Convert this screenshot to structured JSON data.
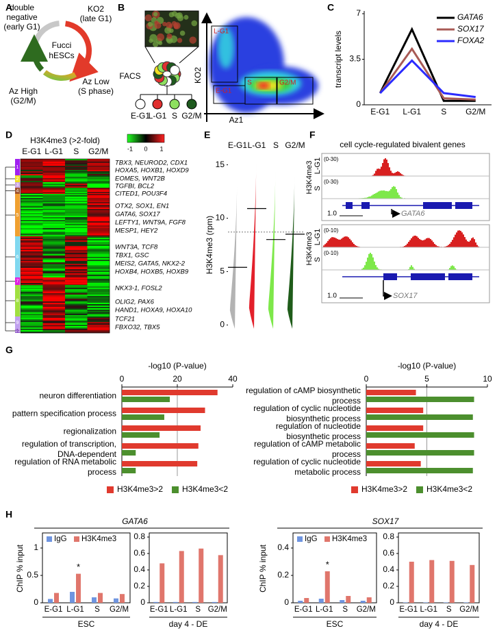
{
  "panel_labels": [
    "A",
    "B",
    "C",
    "D",
    "E",
    "F",
    "G",
    "H"
  ],
  "panel_a": {
    "center": [
      "Fucci",
      "hESCs"
    ],
    "phases": [
      [
        "double",
        "negative",
        "(early G1)"
      ],
      [
        "KO2",
        "(late G1)"
      ],
      [
        "Az Low",
        "(S phase)"
      ],
      [
        "Az High",
        "(G2/M)"
      ]
    ]
  },
  "panel_b": {
    "sort_label": "FACS",
    "populations": [
      "E-G1",
      "L-G1",
      "S",
      "G2/M"
    ],
    "gates": [
      "L-G1",
      "E-G1",
      "S",
      "G2/M"
    ],
    "y_label": "KO2",
    "x_label": "Az1"
  },
  "panel_d": {
    "title": "H3K4me3 (>2-fold)",
    "columns": [
      "E-G1",
      "L-G1",
      "S",
      "G2/M"
    ],
    "colorbar_ticks": [
      -1,
      0,
      1
    ],
    "clusters": [
      "1",
      "2",
      "3",
      "4",
      "5",
      "6",
      "7",
      "8",
      "9",
      "10"
    ],
    "genes": [
      "TBX3, NEUROD2, CDX1",
      "HOXA5, HOXB1, HOXD9",
      "EOMES, WNT2B",
      "TGFBI, BCL2",
      "CITED1, POU3F4",
      "OTX2, SOX1, EN1",
      "GATA6, SOX17",
      "LEFTY1, WNT9A, FGF8",
      "MESP1, HEY2",
      "WNT3A, TCF8",
      "TBX1, GSC",
      "MEIS2, GATA5, NKX2-2",
      "HOXB4, HOXB5, HOXB9",
      "NKX3-1, FOSL2",
      "OLIG2, PAX6",
      "HAND1, HOXA9, HOXA10",
      "TCF21",
      "FBXO32, TBX5"
    ]
  },
  "panel_f": {
    "title": "cell cycle-regulated bivalent genes",
    "loci": [
      {
        "mark": "H3K4me3",
        "tracks": [
          {
            "label": "L-G1",
            "range": "(0-30)"
          },
          {
            "label": "S",
            "range": "(0-30)"
          }
        ],
        "scale": "1.0",
        "gene": "GATA6"
      },
      {
        "mark": "H3K4me3",
        "tracks": [
          {
            "label": "L-G1",
            "range": "(0-10)"
          },
          {
            "label": "S",
            "range": "(0-10)"
          }
        ],
        "scale": "1.0",
        "gene": "SOX17"
      }
    ]
  },
  "panel_h": {
    "genes": [
      "GATA6",
      "SOX17"
    ],
    "y_label": "ChIP % input"
  },
  "chart_data": [
    {
      "type": "line",
      "categories": [
        "E-G1",
        "L-G1",
        "S",
        "G2/M"
      ],
      "ylabel": "transcript levels",
      "ylim": [
        0,
        7
      ],
      "yticks": [
        0,
        3.5,
        7
      ],
      "series": [
        {
          "name": "GATA6",
          "color": "#000000",
          "values": [
            0.9,
            5.8,
            0.3,
            0.3
          ]
        },
        {
          "name": "SOX17",
          "color": "#a85a55",
          "values": [
            0.9,
            4.3,
            0.5,
            0.4
          ]
        },
        {
          "name": "FOXA2",
          "color": "#2b2bff",
          "values": [
            0.9,
            3.4,
            0.9,
            0.6
          ]
        }
      ]
    },
    {
      "type": "violin",
      "categories": [
        "E-G1",
        "L-G1",
        "S",
        "G2/M"
      ],
      "ylabel": "H3K4me3 (rpm)",
      "ylim": [
        -1,
        16
      ],
      "yticks": [
        0,
        5,
        10,
        15
      ],
      "colors": [
        "#b3b3b3",
        "#e3202b",
        "#7ee84a",
        "#1f5c1a"
      ],
      "means": [
        5.4,
        10.9,
        8.0,
        8.5
      ],
      "reference_line": 8.7
    },
    {
      "type": "hbar",
      "xlabel": "-log10 (P-value)",
      "categories": [
        "neuron differentiation",
        "pattern specification process",
        "regionalization",
        "regulation of transcription, DNA-dependent",
        "regulation of RNA metabolic process"
      ],
      "xlim": [
        0,
        40
      ],
      "xticks": [
        0,
        20,
        40
      ],
      "grid": true,
      "series": [
        {
          "name": "H3K4me3>2",
          "color": "#e03a2e",
          "values": [
            34.5,
            30,
            28.4,
            27.6,
            27.2
          ]
        },
        {
          "name": "H3K4me3<2",
          "color": "#4c8f2e",
          "values": [
            17.3,
            15.3,
            13.6,
            5,
            5
          ]
        }
      ]
    },
    {
      "type": "hbar",
      "xlabel": "-log10 (P-value)",
      "categories": [
        "regulation of cAMP biosynthetic process",
        "regulation of cyclic nucleotide biosynthetic process",
        "regulation of nucleotide biosynthetic process",
        "regulation of cAMP metabolic process",
        "regulation of cyclic nucleotide metabolic process"
      ],
      "xlim": [
        0,
        10
      ],
      "xticks": [
        0,
        5,
        10
      ],
      "grid": true,
      "series": [
        {
          "name": "H3K4me3>2",
          "color": "#e03a2e",
          "values": [
            4.1,
            4.7,
            4.7,
            4.0,
            4.5
          ]
        },
        {
          "name": "H3K4me3<2",
          "color": "#4c8f2e",
          "values": [
            8.9,
            8.8,
            8.9,
            8.9,
            8.8
          ]
        }
      ]
    },
    {
      "type": "bar",
      "xlabel": "ESC",
      "categories": [
        "E-G1",
        "L-G1",
        "S",
        "G2/M"
      ],
      "ylim": [
        0,
        1
      ],
      "yticks": [
        0,
        0.5,
        1
      ],
      "legend": true,
      "annotation": "*",
      "series": [
        {
          "name": "IgG",
          "color": "#6f95e0",
          "values": [
            0.07,
            0.2,
            0.1,
            0.08
          ]
        },
        {
          "name": "H3K4me3",
          "color": "#e0766c",
          "values": [
            0.18,
            0.53,
            0.18,
            0.16
          ]
        }
      ]
    },
    {
      "type": "bar",
      "xlabel": "day 4 - DE",
      "categories": [
        "E-G1",
        "L-G1",
        "S",
        "G2/M"
      ],
      "ylim": [
        0,
        0.8
      ],
      "yticks": [
        0,
        0.2,
        0.4,
        0.6,
        0.8
      ],
      "legend": false,
      "series": [
        {
          "color": "#6f95e0",
          "values": [
            0.01,
            0.01,
            0.01,
            0.01
          ]
        },
        {
          "color": "#e0766c",
          "values": [
            0.48,
            0.63,
            0.66,
            0.58
          ]
        }
      ]
    },
    {
      "type": "bar",
      "xlabel": "ESC",
      "categories": [
        "E-G1",
        "L-G1",
        "S",
        "G2/M"
      ],
      "ylim": [
        0,
        0.4
      ],
      "yticks": [
        0,
        0.2,
        0.4
      ],
      "legend": true,
      "annotation": "*",
      "series": [
        {
          "name": "IgG",
          "color": "#6f95e0",
          "values": [
            0.015,
            0.03,
            0.02,
            0.015
          ]
        },
        {
          "name": "H3K4me3",
          "color": "#e0766c",
          "values": [
            0.035,
            0.23,
            0.05,
            0.04
          ]
        }
      ]
    },
    {
      "type": "bar",
      "xlabel": "day 4 - DE",
      "categories": [
        "E-G1",
        "L-G1",
        "S",
        "G2/M"
      ],
      "ylim": [
        0,
        0.8
      ],
      "yticks": [
        0,
        0.2,
        0.4,
        0.6,
        0.8
      ],
      "legend": false,
      "series": [
        {
          "color": "#6f95e0",
          "values": [
            0.005,
            0.005,
            0.005,
            0.005
          ]
        },
        {
          "color": "#e0766c",
          "values": [
            0.5,
            0.52,
            0.51,
            0.46
          ]
        }
      ]
    }
  ]
}
